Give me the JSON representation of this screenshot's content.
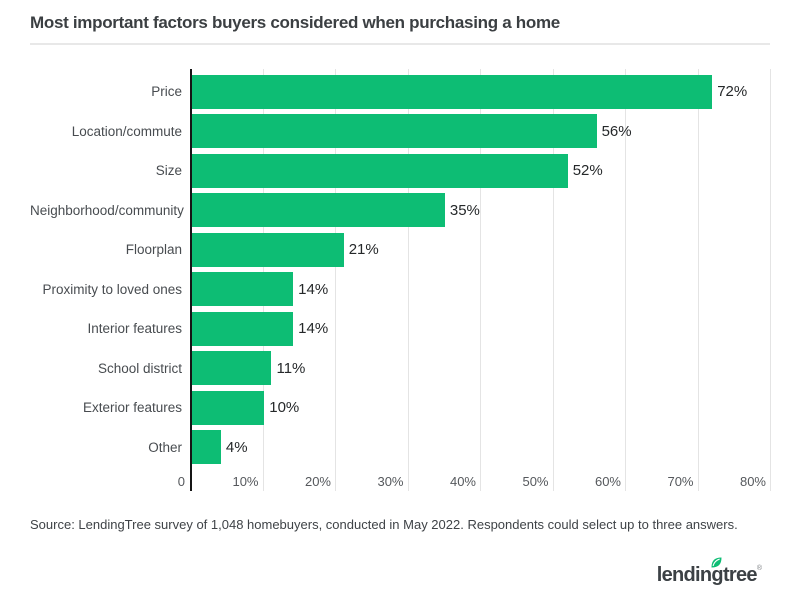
{
  "header": {
    "title": "Most important factors buyers considered when purchasing a home"
  },
  "chart_data": {
    "type": "bar",
    "orientation": "horizontal",
    "title": "Most important factors buyers considered when purchasing a home",
    "categories": [
      "Price",
      "Location/commute",
      "Size",
      "Neighborhood/community",
      "Floorplan",
      "Proximity to loved ones",
      "Interior features",
      "School district",
      "Exterior features",
      "Other"
    ],
    "values": [
      72,
      56,
      52,
      35,
      21,
      14,
      14,
      11,
      10,
      4
    ],
    "value_labels": [
      "72%",
      "56%",
      "52%",
      "35%",
      "21%",
      "14%",
      "14%",
      "11%",
      "10%",
      "4%"
    ],
    "x_ticks": [
      "0",
      "10%",
      "20%",
      "30%",
      "40%",
      "50%",
      "60%",
      "70%",
      "80%"
    ],
    "xlim": [
      0,
      80
    ],
    "xlabel": "",
    "ylabel": "",
    "grid": true,
    "legend": false,
    "bar_color": "#0dbd74",
    "axis_color": "#151515",
    "gridline_color": "#e4e4e4"
  },
  "footer": {
    "source": "Source: LendingTree survey of 1,048 homebuyers, conducted in May 2022. Respondents could select up to three answers.",
    "logo_text": "lendingtree",
    "logo_mark": "®",
    "logo_leaf_color": "#0dbd74"
  }
}
